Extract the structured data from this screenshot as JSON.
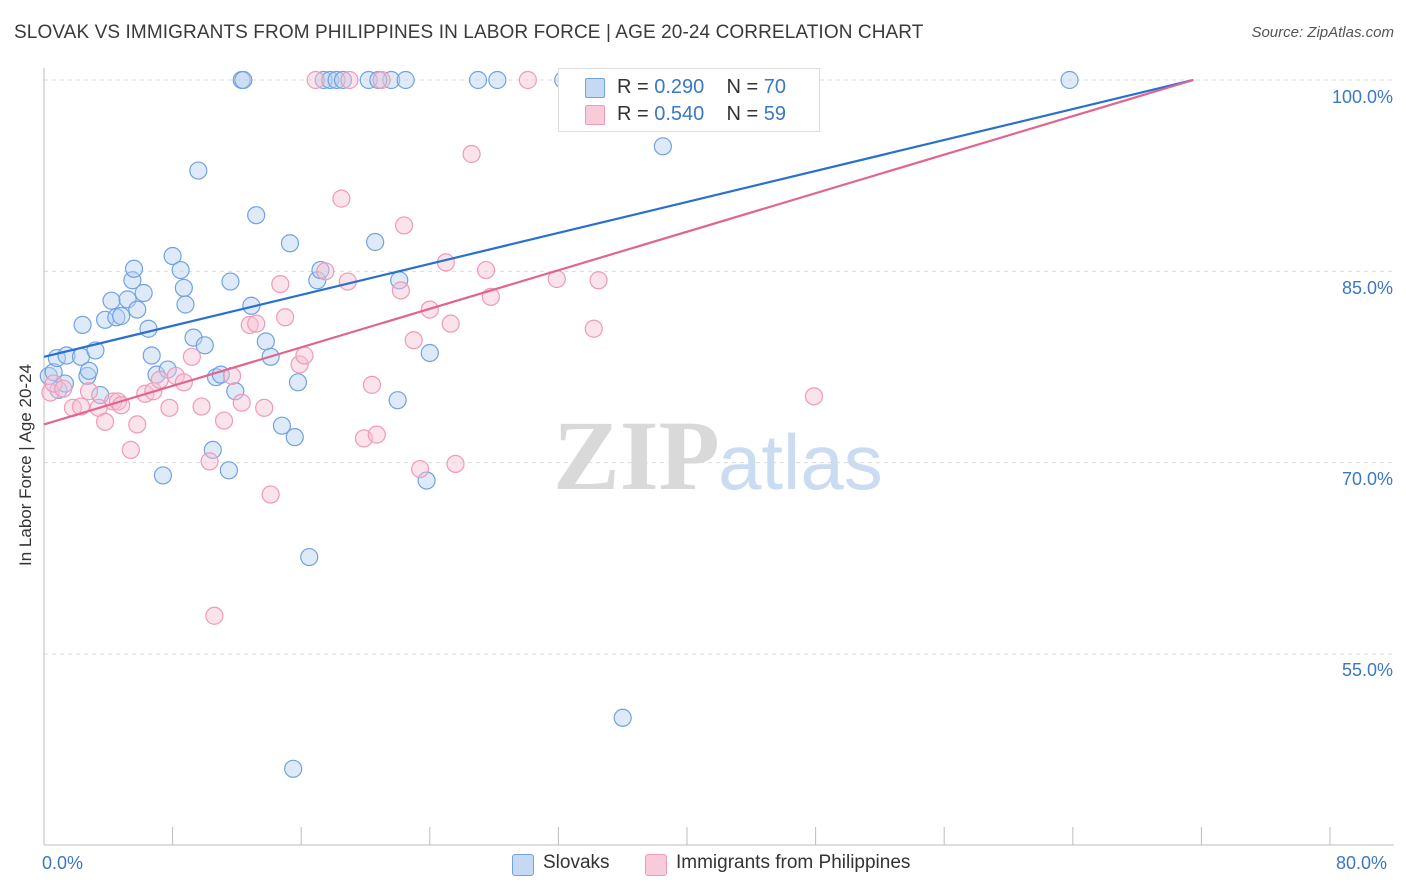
{
  "title": "SLOVAK VS IMMIGRANTS FROM PHILIPPINES IN LABOR FORCE | AGE 20-24 CORRELATION CHART",
  "source": "Source: ZipAtlas.com",
  "watermark": {
    "zip": "ZIP",
    "atlas": "atlas"
  },
  "legend_top": [
    {
      "r_label": "R = ",
      "r_value": "0.290",
      "n_label": "N = ",
      "n_value": "70"
    },
    {
      "r_label": "R = ",
      "r_value": "0.540",
      "n_label": "N = ",
      "n_value": "59"
    }
  ],
  "chart_data": {
    "type": "scatter",
    "title": "SLOVAK VS IMMIGRANTS FROM PHILIPPINES IN LABOR FORCE | AGE 20-24 CORRELATION CHART",
    "xlabel": "",
    "ylabel": "In Labor Force | Age 20-24",
    "xlim": [
      0,
      80
    ],
    "ylim": [
      40,
      102
    ],
    "x_tick_labels": [
      "0.0%",
      "80.0%"
    ],
    "y_ticks": [
      55,
      70,
      85,
      100
    ],
    "y_tick_labels": [
      "55.0%",
      "70.0%",
      "85.0%",
      "100.0%"
    ],
    "colors": {
      "Slovaks": "#6fa3e0",
      "Slovaks_line": "#2a70cf",
      "Immigrants from Philippines": "#ef9ab6",
      "Philippines_line": "#e0668f"
    },
    "series": [
      {
        "name": "Slovaks",
        "r": 0.29,
        "n": 70,
        "trend": {
          "x": [
            0,
            71.5
          ],
          "y": [
            78.3,
            100
          ]
        },
        "points": [
          [
            0.3,
            76.8
          ],
          [
            0.6,
            77.1
          ],
          [
            0.8,
            78.2
          ],
          [
            0.9,
            75.7
          ],
          [
            1.3,
            76.2
          ],
          [
            1.4,
            78.4
          ],
          [
            2.3,
            78.3
          ],
          [
            2.4,
            80.8
          ],
          [
            2.7,
            76.8
          ],
          [
            2.8,
            77.2
          ],
          [
            3.2,
            78.8
          ],
          [
            3.5,
            75.3
          ],
          [
            3.8,
            81.2
          ],
          [
            4.2,
            82.7
          ],
          [
            4.5,
            81.4
          ],
          [
            4.8,
            81.5
          ],
          [
            5.2,
            82.8
          ],
          [
            5.5,
            84.3
          ],
          [
            5.6,
            85.2
          ],
          [
            5.8,
            82.0
          ],
          [
            6.2,
            83.3
          ],
          [
            6.5,
            80.5
          ],
          [
            6.7,
            78.4
          ],
          [
            7.0,
            76.9
          ],
          [
            7.4,
            69.0
          ],
          [
            7.7,
            77.3
          ],
          [
            8.0,
            86.2
          ],
          [
            8.5,
            85.1
          ],
          [
            8.7,
            83.7
          ],
          [
            8.8,
            82.4
          ],
          [
            9.3,
            79.8
          ],
          [
            9.6,
            92.9
          ],
          [
            10.0,
            79.2
          ],
          [
            10.5,
            71.0
          ],
          [
            10.7,
            76.7
          ],
          [
            11.0,
            76.9
          ],
          [
            11.5,
            69.4
          ],
          [
            11.6,
            84.2
          ],
          [
            11.9,
            75.6
          ],
          [
            12.3,
            100
          ],
          [
            12.4,
            100
          ],
          [
            12.9,
            82.3
          ],
          [
            13.2,
            89.4
          ],
          [
            13.8,
            79.5
          ],
          [
            14.1,
            78.3
          ],
          [
            14.8,
            72.9
          ],
          [
            15.3,
            87.2
          ],
          [
            15.6,
            72.0
          ],
          [
            15.8,
            76.3
          ],
          [
            16.5,
            62.6
          ],
          [
            17.0,
            84.3
          ],
          [
            17.2,
            85.1
          ],
          [
            17.4,
            100
          ],
          [
            17.8,
            100
          ],
          [
            18.2,
            100
          ],
          [
            18.6,
            100
          ],
          [
            20.2,
            100
          ],
          [
            20.6,
            87.3
          ],
          [
            21.6,
            100
          ],
          [
            22.0,
            74.9
          ],
          [
            22.1,
            84.3
          ],
          [
            22.5,
            100
          ],
          [
            23.8,
            68.6
          ],
          [
            24.0,
            78.6
          ],
          [
            27.0,
            100
          ],
          [
            28.2,
            100
          ],
          [
            36.0,
            50.0
          ],
          [
            38.5,
            94.8
          ],
          [
            63.8,
            100
          ],
          [
            15.5,
            46.0
          ]
        ]
      },
      {
        "name": "Immigrants from Philippines",
        "r": 0.54,
        "n": 59,
        "trend": {
          "x": [
            0,
            71.5
          ],
          "y": [
            73.0,
            100
          ]
        },
        "points": [
          [
            0.4,
            75.5
          ],
          [
            0.6,
            76.2
          ],
          [
            1.2,
            75.8
          ],
          [
            1.8,
            74.3
          ],
          [
            2.3,
            74.4
          ],
          [
            2.8,
            75.6
          ],
          [
            3.4,
            74.3
          ],
          [
            3.8,
            73.2
          ],
          [
            4.3,
            74.8
          ],
          [
            4.6,
            74.8
          ],
          [
            4.8,
            74.5
          ],
          [
            5.4,
            71.0
          ],
          [
            5.8,
            73.0
          ],
          [
            6.3,
            75.4
          ],
          [
            6.8,
            75.6
          ],
          [
            7.2,
            76.5
          ],
          [
            7.8,
            74.3
          ],
          [
            8.2,
            76.8
          ],
          [
            8.7,
            76.3
          ],
          [
            9.2,
            78.3
          ],
          [
            9.8,
            74.4
          ],
          [
            10.3,
            70.1
          ],
          [
            10.6,
            58.0
          ],
          [
            11.2,
            73.3
          ],
          [
            11.7,
            76.8
          ],
          [
            12.3,
            74.7
          ],
          [
            12.8,
            80.8
          ],
          [
            13.2,
            80.9
          ],
          [
            13.7,
            74.3
          ],
          [
            14.1,
            67.5
          ],
          [
            14.7,
            84.0
          ],
          [
            15.0,
            81.4
          ],
          [
            15.9,
            77.7
          ],
          [
            16.2,
            78.4
          ],
          [
            16.9,
            100
          ],
          [
            17.5,
            85.0
          ],
          [
            18.5,
            90.7
          ],
          [
            18.9,
            84.2
          ],
          [
            19.0,
            100
          ],
          [
            19.9,
            71.9
          ],
          [
            20.4,
            76.1
          ],
          [
            20.7,
            72.2
          ],
          [
            21.0,
            100
          ],
          [
            22.2,
            83.5
          ],
          [
            22.4,
            88.6
          ],
          [
            23.0,
            79.6
          ],
          [
            23.4,
            69.5
          ],
          [
            24.0,
            82.0
          ],
          [
            25.0,
            85.7
          ],
          [
            25.3,
            80.9
          ],
          [
            25.6,
            69.9
          ],
          [
            26.6,
            94.2
          ],
          [
            27.5,
            85.1
          ],
          [
            27.8,
            83.0
          ],
          [
            30.1,
            100
          ],
          [
            31.9,
            84.4
          ],
          [
            34.2,
            80.5
          ],
          [
            34.5,
            84.3
          ],
          [
            47.9,
            75.2
          ]
        ]
      }
    ],
    "extra_points": {
      "Slovaks_top": [
        [
          20.8,
          100
        ],
        [
          32.3,
          100
        ]
      ]
    }
  },
  "legend_bottom": [
    {
      "label": "Slovaks"
    },
    {
      "label": "Immigrants from Philippines"
    }
  ]
}
